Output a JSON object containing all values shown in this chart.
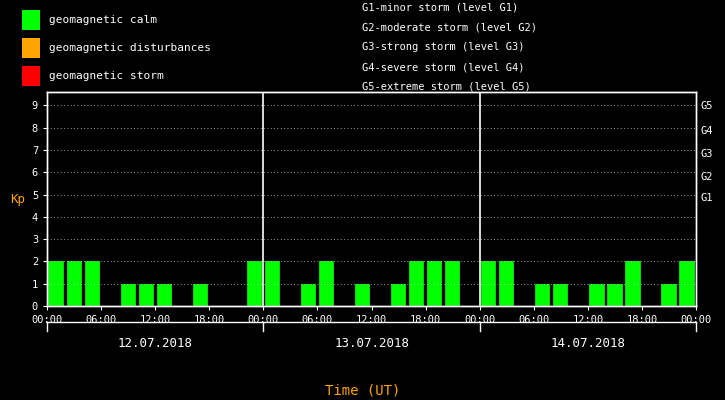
{
  "background_color": "#000000",
  "bar_color_calm": "#00ff00",
  "bar_color_disturb": "#ffa500",
  "bar_color_storm": "#ff0000",
  "text_color": "#ffffff",
  "orange_color": "#ffa500",
  "kp_values": [
    2,
    2,
    2,
    0,
    1,
    1,
    1,
    0,
    1,
    0,
    0,
    2,
    2,
    0,
    1,
    2,
    0,
    1,
    0,
    1,
    2,
    2,
    2,
    0,
    2,
    2,
    0,
    1,
    1,
    0,
    1,
    1,
    2,
    0,
    1,
    2
  ],
  "days": [
    "12.07.2018",
    "13.07.2018",
    "14.07.2018"
  ],
  "yticks": [
    0,
    1,
    2,
    3,
    4,
    5,
    6,
    7,
    8,
    9
  ],
  "ylim": [
    0,
    9.6
  ],
  "right_labels": [
    "G5",
    "G4",
    "G3",
    "G2",
    "G1"
  ],
  "right_label_yvals": [
    9.0,
    7.9,
    6.85,
    5.85,
    4.9
  ],
  "grid_yvals": [
    1,
    2,
    3,
    4,
    5,
    6,
    7,
    8,
    9
  ],
  "legend_items": [
    {
      "label": "geomagnetic calm",
      "color": "#00ff00"
    },
    {
      "label": "geomagnetic disturbances",
      "color": "#ffa500"
    },
    {
      "label": "geomagnetic storm",
      "color": "#ff0000"
    }
  ],
  "right_legend": [
    "G1-minor storm (level G1)",
    "G2-moderate storm (level G2)",
    "G3-strong storm (level G3)",
    "G4-severe storm (level G4)",
    "G5-extreme storm (level G5)"
  ],
  "xlabel": "Time (UT)",
  "ylabel": "Kp",
  "tick_labels_per_day": [
    "00:00",
    "06:00",
    "12:00",
    "18:00"
  ],
  "font_size_ticks": 7.5,
  "font_size_labels": 9,
  "font_size_legend": 8,
  "font_size_right_legend": 7.5,
  "font_size_right_axis": 7.5,
  "font_size_day": 9,
  "font_size_xlabel": 10
}
